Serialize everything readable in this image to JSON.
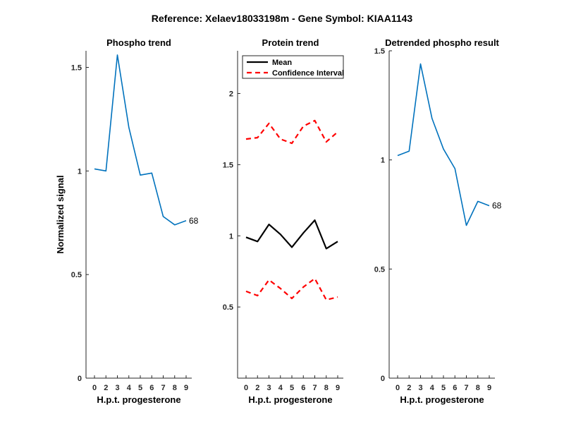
{
  "figure": {
    "title": "Reference:  Xelaev18033198m - Gene Symbol:  KIAA1143"
  },
  "colors": {
    "phospho": "#0072BD",
    "mean": "#000000",
    "ci": "#FF0000",
    "axis": "#262626"
  },
  "chart_data": [
    {
      "type": "line",
      "title": "Phospho trend",
      "xlabel": "H.p.t. progesterone",
      "ylabel": "Normalized signal",
      "categories": [
        "0",
        "2",
        "3",
        "4",
        "5",
        "6",
        "7",
        "8",
        "9"
      ],
      "ylim": [
        0,
        1.58
      ],
      "yticks": [
        0,
        0.5,
        1,
        1.5
      ],
      "ytick_labels": [
        "0",
        "0.5",
        "1",
        "1.5"
      ],
      "series": [
        {
          "values": [
            1.01,
            1.0,
            1.56,
            1.21,
            0.98,
            0.99,
            0.78,
            0.74,
            0.76
          ],
          "style": "solid"
        }
      ],
      "end_label": "68",
      "grid": false
    },
    {
      "type": "line",
      "title": "Protein trend",
      "xlabel": "H.p.t. progesterone",
      "ylabel": "",
      "categories": [
        "0",
        "2",
        "3",
        "4",
        "5",
        "6",
        "7",
        "8",
        "9"
      ],
      "ylim": [
        0,
        2.3
      ],
      "yticks": [
        0.5,
        1,
        1.5,
        2
      ],
      "ytick_labels": [
        "0.5",
        "1",
        "1.5",
        "2"
      ],
      "series": [
        {
          "name": "Mean",
          "values": [
            0.99,
            0.96,
            1.08,
            1.01,
            0.92,
            1.02,
            1.11,
            0.91,
            0.96
          ],
          "style": "solid"
        },
        {
          "name": "Confidence Interval",
          "values": [
            1.68,
            1.69,
            1.79,
            1.68,
            1.65,
            1.77,
            1.81,
            1.66,
            1.73
          ],
          "style": "dashed"
        },
        {
          "values": [
            0.61,
            0.58,
            0.69,
            0.63,
            0.56,
            0.64,
            0.7,
            0.55,
            0.57
          ],
          "style": "dashed"
        }
      ],
      "legend": "top-left",
      "grid": false
    },
    {
      "type": "line",
      "title": "Detrended phospho result",
      "xlabel": "H.p.t. progesterone",
      "ylabel": "",
      "categories": [
        "0",
        "2",
        "3",
        "4",
        "5",
        "6",
        "7",
        "8",
        "9"
      ],
      "ylim": [
        0,
        1.5
      ],
      "yticks": [
        0,
        0.5,
        1,
        1.5
      ],
      "ytick_labels": [
        "0",
        "0.5",
        "1",
        "1.5"
      ],
      "series": [
        {
          "values": [
            1.02,
            1.04,
            1.44,
            1.19,
            1.05,
            0.96,
            0.7,
            0.81,
            0.79
          ],
          "style": "solid"
        }
      ],
      "end_label": "68",
      "grid": false
    }
  ]
}
